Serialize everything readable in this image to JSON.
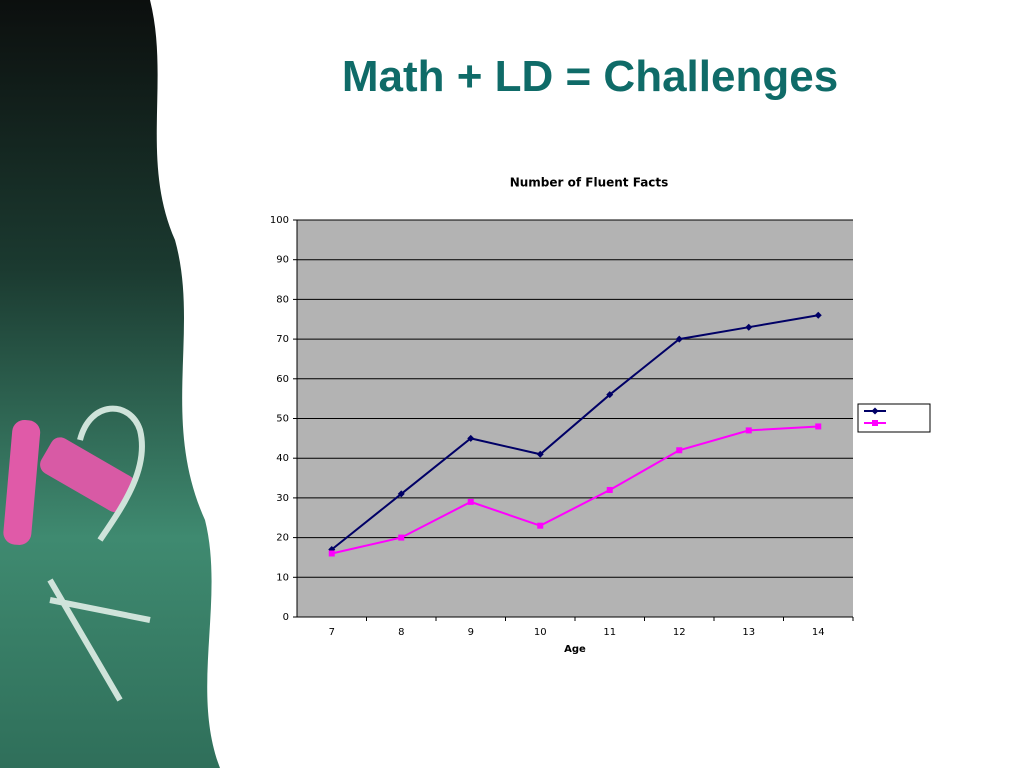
{
  "title": "Math + LD = Challenges",
  "chart_data": {
    "type": "line",
    "title": "Number of Fluent Facts",
    "x_label": "Age",
    "categories": [
      "7",
      "8",
      "9",
      "10",
      "11",
      "12",
      "13",
      "14"
    ],
    "series": [
      {
        "color": "#000066",
        "marker": "diamond",
        "values": [
          17,
          31,
          45,
          41,
          56,
          70,
          73,
          76
        ]
      },
      {
        "color": "#ff00ff",
        "marker": "square",
        "values": [
          16,
          20,
          29,
          23,
          32,
          42,
          47,
          48
        ]
      }
    ],
    "ylim": [
      0,
      100
    ],
    "yticks": [
      0,
      10,
      20,
      30,
      40,
      50,
      60,
      70,
      80,
      90,
      100
    ],
    "grid": true
  }
}
